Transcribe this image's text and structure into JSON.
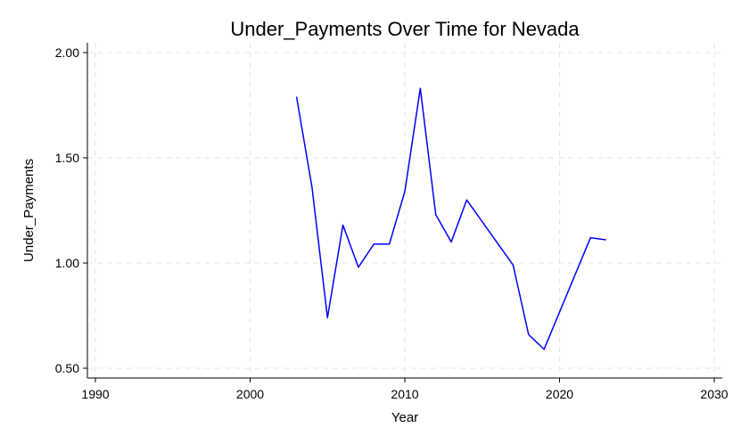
{
  "chart_data": {
    "type": "line",
    "title": "Under_Payments Over Time for Nevada",
    "xlabel": "Year",
    "ylabel": "Under_Payments",
    "xlim": [
      1990,
      2030
    ],
    "ylim": [
      0.45,
      2.05
    ],
    "x_ticks": [
      1990,
      2000,
      2010,
      2020,
      2030
    ],
    "x_tick_labels": [
      "1990",
      "2000",
      "2010",
      "2020",
      "2030"
    ],
    "y_ticks": [
      0.5,
      1.0,
      1.5,
      2.0
    ],
    "y_tick_labels": [
      "0.50",
      "1.00",
      "1.50",
      "2.00"
    ],
    "grid": true,
    "line_color": "#0000ff",
    "series": [
      {
        "x": [
          2003,
          2004,
          2005,
          2006,
          2007,
          2008,
          2009,
          2010,
          2011,
          2012,
          2013,
          2014,
          2017,
          2018,
          2019,
          2022,
          2023
        ],
        "values": [
          1.79,
          1.36,
          0.74,
          1.18,
          0.98,
          1.09,
          1.09,
          1.34,
          1.83,
          1.23,
          1.1,
          1.3,
          0.99,
          0.66,
          0.59,
          1.12,
          1.11
        ]
      }
    ]
  }
}
